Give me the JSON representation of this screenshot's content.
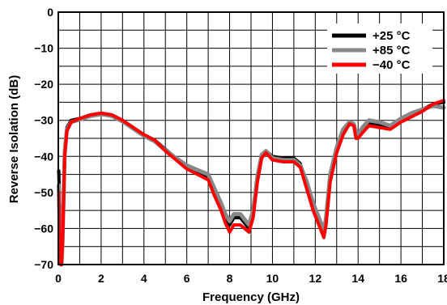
{
  "chart_data": {
    "type": "line",
    "title": "",
    "xlabel": "Frequency (GHz)",
    "ylabel": "Reverse Isolation (dB)",
    "xlim": [
      0,
      18
    ],
    "ylim": [
      -70,
      0
    ],
    "grid": true,
    "legend_position": "top-right",
    "x_ticks": [
      "0",
      "2",
      "4",
      "6",
      "8",
      "10",
      "12",
      "14",
      "16",
      "18"
    ],
    "y_ticks": [
      "0",
      "−10",
      "−20",
      "−30",
      "−40",
      "−50",
      "−60",
      "−70"
    ],
    "series": [
      {
        "name": "+25 °C",
        "color": "#000000",
        "x": [
          0.02,
          0.05,
          0.1,
          0.15,
          0.2,
          0.3,
          0.4,
          0.6,
          1.0,
          1.5,
          2.0,
          2.5,
          3.0,
          3.5,
          4.0,
          4.5,
          5.0,
          5.5,
          6.0,
          6.5,
          7.0,
          7.3,
          7.6,
          7.8,
          8.0,
          8.2,
          8.5,
          8.7,
          8.9,
          9.1,
          9.3,
          9.5,
          9.7,
          10.0,
          10.5,
          11.0,
          11.3,
          11.6,
          11.9,
          12.1,
          12.3,
          12.4,
          12.5,
          12.7,
          13.0,
          13.3,
          13.6,
          13.8,
          13.9,
          14.0,
          14.2,
          14.5,
          15.0,
          15.5,
          16.0,
          16.5,
          17.0,
          17.5,
          18.0
        ],
        "y": [
          -44,
          -50,
          -66,
          -70,
          -62,
          -38,
          -32,
          -30,
          -29.5,
          -28.5,
          -28,
          -28.5,
          -30,
          -32,
          -34,
          -35.5,
          -38,
          -40.5,
          -43,
          -44.5,
          -46,
          -50,
          -54,
          -57,
          -59,
          -57,
          -57,
          -58.5,
          -60,
          -56,
          -46,
          -40,
          -38.5,
          -40,
          -40.5,
          -40.5,
          -42,
          -48,
          -54,
          -57,
          -60,
          -62,
          -58,
          -46,
          -38,
          -33,
          -30.5,
          -31,
          -34,
          -34.5,
          -33,
          -31,
          -31.5,
          -32,
          -30,
          -28.5,
          -27,
          -25.5,
          -25
        ]
      },
      {
        "name": "+85 °C",
        "color": "#888888",
        "x": [
          0.02,
          0.05,
          0.1,
          0.15,
          0.2,
          0.3,
          0.4,
          0.6,
          1.0,
          1.5,
          2.0,
          2.5,
          3.0,
          3.5,
          4.0,
          4.5,
          5.0,
          5.5,
          6.0,
          6.5,
          7.0,
          7.3,
          7.6,
          7.8,
          8.0,
          8.2,
          8.5,
          8.7,
          8.9,
          9.1,
          9.3,
          9.5,
          9.7,
          10.0,
          10.5,
          11.0,
          11.3,
          11.6,
          11.9,
          12.1,
          12.3,
          12.4,
          12.5,
          12.7,
          13.0,
          13.3,
          13.6,
          13.8,
          13.9,
          14.0,
          14.2,
          14.5,
          15.0,
          15.5,
          16.0,
          16.5,
          17.0,
          17.5,
          18.0
        ],
        "y": [
          -48,
          -54,
          -68,
          -70,
          -63,
          -39,
          -32.5,
          -30.5,
          -29.8,
          -28.8,
          -28.3,
          -28.8,
          -30.3,
          -32.3,
          -34.3,
          -35.8,
          -38.3,
          -40.5,
          -42.5,
          -43.8,
          -45,
          -49,
          -53,
          -56,
          -58,
          -56,
          -56,
          -57.5,
          -59,
          -55,
          -45.5,
          -39.5,
          -38.5,
          -40.5,
          -41,
          -41,
          -42.5,
          -47,
          -53,
          -56,
          -59,
          -61,
          -57,
          -45,
          -37.5,
          -32.5,
          -30.5,
          -31,
          -33.5,
          -34,
          -32,
          -30,
          -30.5,
          -31.5,
          -29.5,
          -28,
          -27,
          -26,
          -26.5
        ]
      },
      {
        "name": "−40 °C",
        "color": "#ff0000",
        "x": [
          0.02,
          0.05,
          0.1,
          0.15,
          0.2,
          0.3,
          0.4,
          0.6,
          1.0,
          1.5,
          2.0,
          2.5,
          3.0,
          3.5,
          4.0,
          4.5,
          5.0,
          5.5,
          6.0,
          6.5,
          7.0,
          7.3,
          7.6,
          7.8,
          8.0,
          8.2,
          8.5,
          8.7,
          8.9,
          9.1,
          9.3,
          9.5,
          9.7,
          10.0,
          10.5,
          11.0,
          11.3,
          11.6,
          11.9,
          12.1,
          12.3,
          12.4,
          12.5,
          12.7,
          13.0,
          13.3,
          13.6,
          13.8,
          13.9,
          14.0,
          14.2,
          14.5,
          15.0,
          15.5,
          16.0,
          16.5,
          17.0,
          17.5,
          18.0
        ],
        "y": [
          -50,
          -60,
          -70,
          -70,
          -64,
          -40,
          -33,
          -30.5,
          -29.5,
          -28.5,
          -28,
          -28.5,
          -30,
          -32,
          -34,
          -35.5,
          -38.5,
          -41,
          -43.5,
          -45,
          -46.5,
          -51,
          -55,
          -58.5,
          -61,
          -59,
          -59,
          -60,
          -61,
          -57,
          -47,
          -40.5,
          -39,
          -41,
          -41.5,
          -41.5,
          -43,
          -49,
          -55,
          -58,
          -61,
          -62.5,
          -59,
          -47,
          -39,
          -34,
          -31,
          -31.5,
          -35,
          -35,
          -33.5,
          -31.5,
          -32,
          -32.5,
          -30.5,
          -29,
          -27.5,
          -25.5,
          -24.5
        ]
      }
    ]
  }
}
